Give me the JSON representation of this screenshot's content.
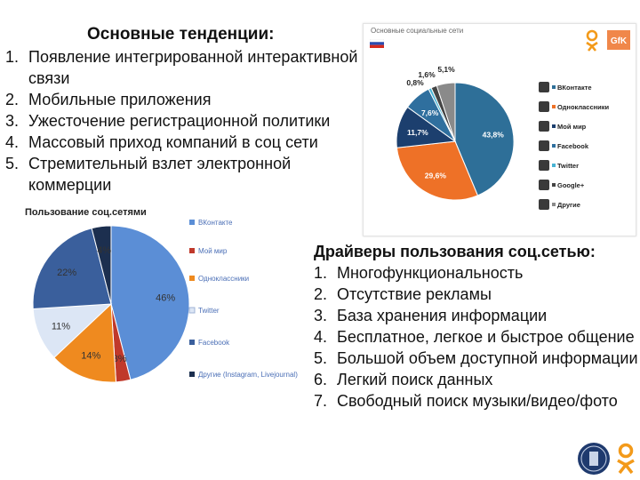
{
  "left_block": {
    "title": "Основные тенденции:",
    "items": [
      {
        "num": "1.",
        "text": "Появление интегрированной интерактивной связи"
      },
      {
        "num": "2.",
        "text": "Мобильные приложения"
      },
      {
        "num": "3.",
        "text": "Ужесточение регистрационной политики"
      },
      {
        "num": "4.",
        "text": "Массовый приход компаний в соц сети"
      },
      {
        "num": "5.",
        "text": "Стремительный взлет электронной коммерции"
      }
    ]
  },
  "right_block": {
    "title": "Драйверы пользования соц.сетью:",
    "items": [
      {
        "num": "1.",
        "text": "Многофункциональность"
      },
      {
        "num": "2.",
        "text": "Отсутствие рекламы"
      },
      {
        "num": "3.",
        "text": "База хранения информации"
      },
      {
        "num": "4.",
        "text": "Бесплатное, легкое и быстрое общение"
      },
      {
        "num": "5.",
        "text": "Большой объем доступной информации"
      },
      {
        "num": "6.",
        "text": "Легкий поиск данных"
      },
      {
        "num": "7.",
        "text": "Свободный поиск музыки/видео/фото"
      }
    ]
  },
  "thumbnail": {
    "title": "Основные социальные сети",
    "brand": "GfK"
  },
  "chart_data": [
    {
      "type": "pie",
      "title": "Пользование соц.сетями",
      "slices": [
        {
          "name": "ВКонтакте",
          "value": 46,
          "label": "46%",
          "color": "#5b8ed6"
        },
        {
          "name": "Мой мир",
          "value": 3,
          "label": "3%",
          "color": "#c0392b"
        },
        {
          "name": "Одноклассники",
          "value": 14,
          "label": "14%",
          "color": "#ef8a1f"
        },
        {
          "name": "Twitter",
          "value": 11,
          "label": "11%",
          "color": "#dce6f5"
        },
        {
          "name": "Facebook",
          "value": 22,
          "label": "22%",
          "color": "#3a5f9c"
        },
        {
          "name": "Другие (Instagram, Livejournal)",
          "value": 4,
          "label": "4%",
          "color": "#1c2f4f"
        }
      ]
    },
    {
      "type": "pie",
      "title": "Основные социальные сети",
      "slices": [
        {
          "name": "ВКонтакте",
          "value": 43.8,
          "label": "43,8%",
          "color": "#2e6f98"
        },
        {
          "name": "Одноклассники",
          "value": 29.6,
          "label": "29,6%",
          "color": "#ee7127"
        },
        {
          "name": "Мой мир",
          "value": 11.7,
          "label": "11,7%",
          "color": "#1c3f6e"
        },
        {
          "name": "Facebook",
          "value": 7.6,
          "label": "7,6%",
          "color": "#2f6f9e"
        },
        {
          "name": "Twitter",
          "value": 0.8,
          "label": "0,8%",
          "color": "#47b3d4"
        },
        {
          "name": "Google+",
          "value": 1.6,
          "label": "1,6%",
          "color": "#444444"
        },
        {
          "name": "Другие",
          "value": 5.1,
          "label": "5,1%",
          "color": "#8a8a8a"
        }
      ]
    }
  ]
}
